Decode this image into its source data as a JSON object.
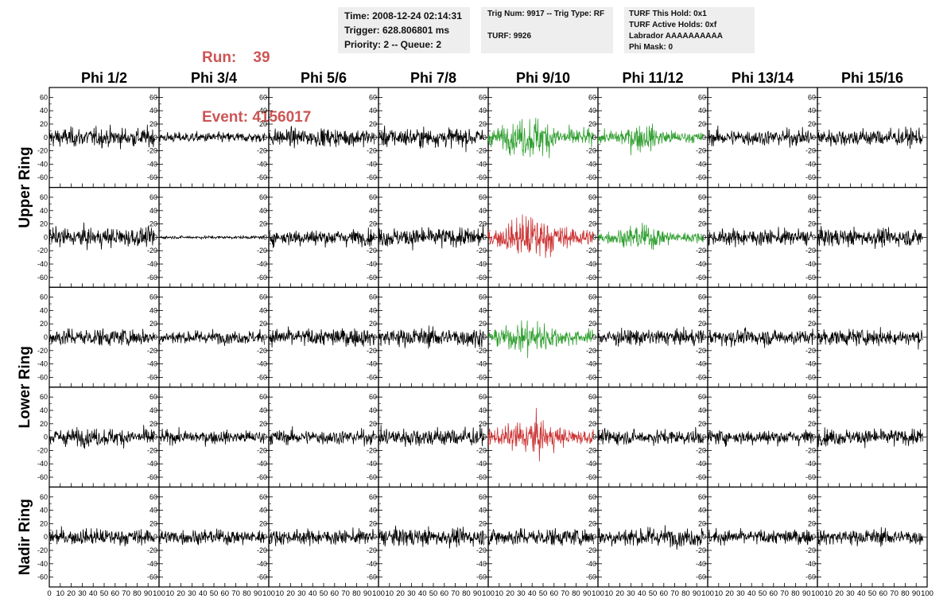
{
  "header": {
    "run_line": "Run:    39",
    "event_line": "Event: 4156017",
    "box1": [
      "Time: 2008-12-24 02:14:31",
      "Trigger: 628.806801 ms",
      "Priority: 2 -- Queue: 2"
    ],
    "box2": [
      "Trig Num: 9917 -- Trig Type: RF",
      "TURF: 9926"
    ],
    "box3": [
      "TURF This Hold: 0x1",
      "TURF Active Holds: 0xf",
      "Labrador AAAAAAAAAA",
      "Phi Mask: 0"
    ]
  },
  "colors": {
    "normal": "#000000",
    "triggered_green": "#2e9e2e",
    "triggered_red": "#cc3333",
    "header_red": "#cc5555",
    "box_bg": "#eeeeee"
  },
  "chart_data": {
    "type": "line",
    "columns": [
      "Phi 1/2",
      "Phi 3/4",
      "Phi 5/6",
      "Phi 7/8",
      "Phi 9/10",
      "Phi 11/12",
      "Phi 13/14",
      "Phi 15/16"
    ],
    "ring_labels": [
      {
        "text": "Upper Ring",
        "rows": [
          0,
          1
        ]
      },
      {
        "text": "Lower Ring",
        "rows": [
          2,
          3
        ]
      },
      {
        "text": "Nadir Ring",
        "rows": [
          4
        ]
      }
    ],
    "xlim": [
      0,
      100
    ],
    "ylim": [
      -70,
      70
    ],
    "x_ticks": [
      0,
      10,
      20,
      30,
      40,
      50,
      60,
      70,
      80,
      90,
      100
    ],
    "y_ticks": [
      -60,
      -40,
      -20,
      0,
      20,
      40,
      60
    ],
    "trace_x_range": [
      0,
      96
    ],
    "samples_per_trace": 260,
    "grid": false,
    "legend": "none",
    "panels": [
      [
        {
          "amp": 13,
          "color": "normal"
        },
        {
          "amp": 7,
          "color": "normal"
        },
        {
          "amp": 12,
          "color": "normal"
        },
        {
          "amp": 13,
          "color": "normal"
        },
        {
          "amp": 20,
          "color": "triggered_green"
        },
        {
          "amp": 13,
          "color": "triggered_green"
        },
        {
          "amp": 11,
          "color": "normal"
        },
        {
          "amp": 12,
          "color": "normal"
        }
      ],
      [
        {
          "amp": 13,
          "color": "normal"
        },
        {
          "amp": 2,
          "color": "normal"
        },
        {
          "amp": 11,
          "color": "normal"
        },
        {
          "amp": 13,
          "color": "normal"
        },
        {
          "amp": 22,
          "color": "triggered_red"
        },
        {
          "amp": 12,
          "color": "triggered_green"
        },
        {
          "amp": 11,
          "color": "normal"
        },
        {
          "amp": 12,
          "color": "normal"
        }
      ],
      [
        {
          "amp": 12,
          "color": "normal"
        },
        {
          "amp": 9,
          "color": "normal"
        },
        {
          "amp": 12,
          "color": "normal"
        },
        {
          "amp": 13,
          "color": "normal"
        },
        {
          "amp": 17,
          "color": "triggered_green"
        },
        {
          "amp": 11,
          "color": "normal"
        },
        {
          "amp": 11,
          "color": "normal"
        },
        {
          "amp": 11,
          "color": "normal"
        }
      ],
      [
        {
          "amp": 12,
          "color": "normal"
        },
        {
          "amp": 9,
          "color": "normal"
        },
        {
          "amp": 10,
          "color": "normal"
        },
        {
          "amp": 13,
          "color": "normal"
        },
        {
          "amp": 18,
          "color": "triggered_red"
        },
        {
          "amp": 10,
          "color": "normal"
        },
        {
          "amp": 10,
          "color": "normal"
        },
        {
          "amp": 11,
          "color": "normal"
        }
      ],
      [
        {
          "amp": 11,
          "color": "normal"
        },
        {
          "amp": 10,
          "color": "normal"
        },
        {
          "amp": 10,
          "color": "normal"
        },
        {
          "amp": 12,
          "color": "normal"
        },
        {
          "amp": 12,
          "color": "normal"
        },
        {
          "amp": 13,
          "color": "normal"
        },
        {
          "amp": 10,
          "color": "normal"
        },
        {
          "amp": 11,
          "color": "normal"
        }
      ]
    ]
  }
}
